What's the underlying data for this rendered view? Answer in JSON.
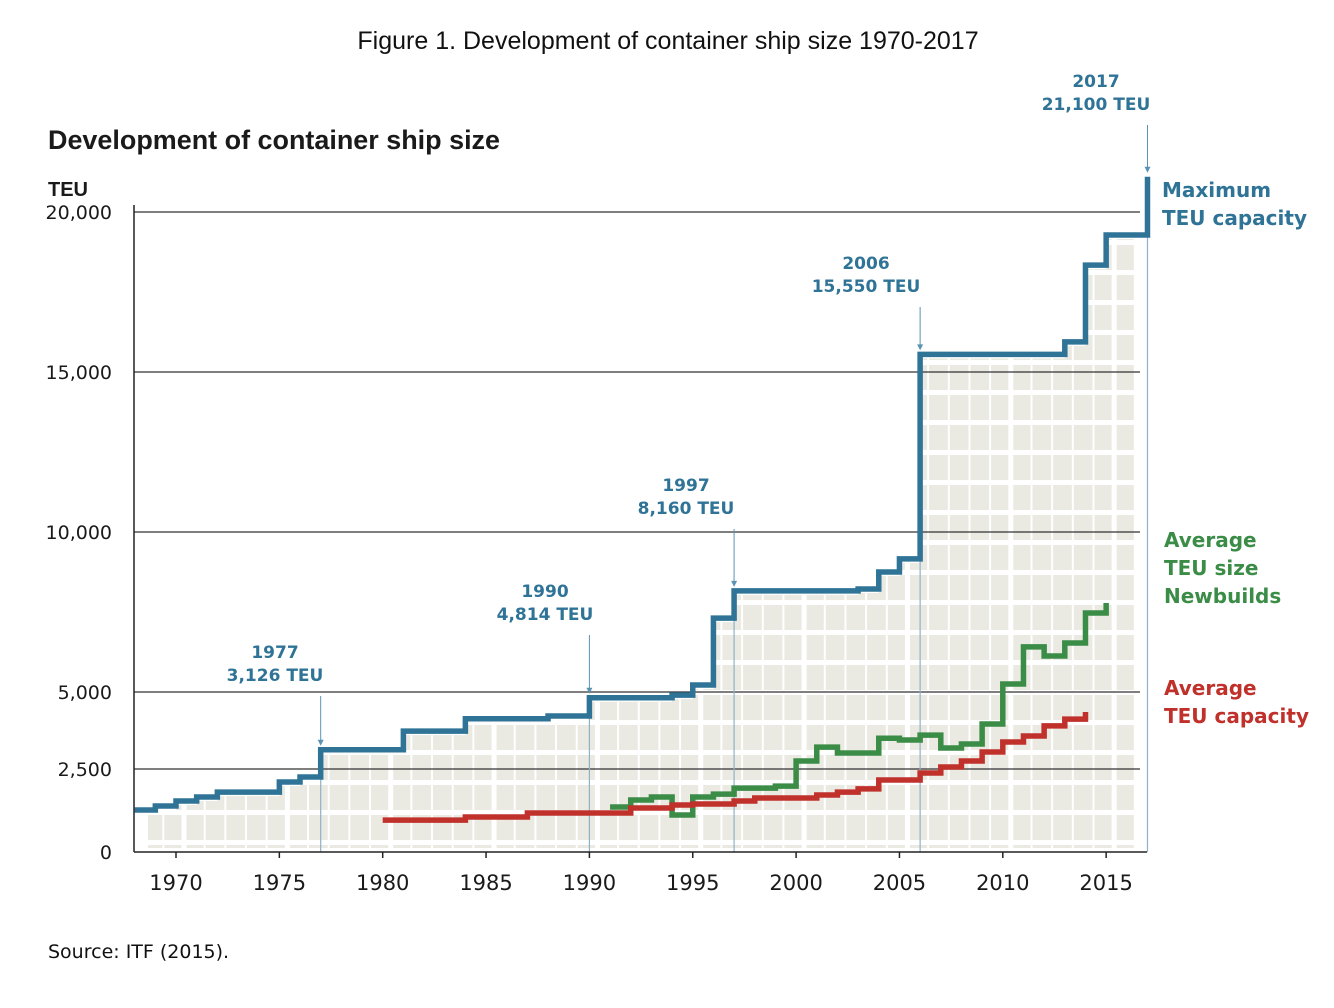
{
  "figure_caption": "Figure 1. Development of container ship size 1970-2017",
  "source": "Source: ITF (2015).",
  "chart_data": {
    "type": "line",
    "subtype": "step",
    "title": "Development of container ship size",
    "ylabel": "TEU",
    "xlabel": "",
    "xlim": [
      1968,
      2017
    ],
    "ylim": [
      0,
      21100
    ],
    "y_scale": "piecewise (0–5,000 expanded)",
    "yticks": [
      0,
      2500,
      5000,
      10000,
      15000,
      20000
    ],
    "ytick_labels": [
      "0",
      "2,500",
      "5,000",
      "10,000",
      "15,000",
      "20,000"
    ],
    "xticks": [
      1970,
      1975,
      1980,
      1985,
      1990,
      1995,
      2000,
      2005,
      2010,
      2015
    ],
    "xtick_labels": [
      "1970",
      "1975",
      "1980",
      "1985",
      "1990",
      "1995",
      "2000",
      "2005",
      "2010",
      "2015"
    ],
    "grid": true,
    "legend_placement": "right (inline labels)",
    "series": [
      {
        "name": "Maximum TEU capacity",
        "legend_lines": [
          "Maximum",
          "TEU capacity"
        ],
        "color": "#2f7397",
        "steps": [
          [
            1968,
            1265
          ],
          [
            1969,
            1385
          ],
          [
            1970,
            1535
          ],
          [
            1971,
            1655
          ],
          [
            1972,
            1805
          ],
          [
            1975,
            2110
          ],
          [
            1976,
            2260
          ],
          [
            1977,
            3126
          ],
          [
            1981,
            3730
          ],
          [
            1984,
            4130
          ],
          [
            1988,
            4220
          ],
          [
            1990,
            4814
          ],
          [
            1994,
            4900
          ],
          [
            1995,
            5220
          ],
          [
            1996,
            7310
          ],
          [
            1997,
            8160
          ],
          [
            2003,
            8220
          ],
          [
            2004,
            8750
          ],
          [
            2005,
            9160
          ],
          [
            2006,
            15550
          ],
          [
            2013,
            15940
          ],
          [
            2014,
            18340
          ],
          [
            2015,
            19280
          ],
          [
            2017,
            21100
          ]
        ],
        "end_year": 2017
      },
      {
        "name": "Average TEU size Newbuilds",
        "legend_lines": [
          "Average",
          "TEU size",
          "Newbuilds"
        ],
        "color": "#3a8c46",
        "steps": [
          [
            1991,
            1355
          ],
          [
            1992,
            1565
          ],
          [
            1993,
            1655
          ],
          [
            1994,
            1115
          ],
          [
            1995,
            1655
          ],
          [
            1996,
            1745
          ],
          [
            1997,
            1925
          ],
          [
            1999,
            1985
          ],
          [
            2000,
            2760
          ],
          [
            2001,
            3210
          ],
          [
            2002,
            3020
          ],
          [
            2004,
            3500
          ],
          [
            2005,
            3440
          ],
          [
            2006,
            3600
          ],
          [
            2007,
            3180
          ],
          [
            2008,
            3310
          ],
          [
            2009,
            3960
          ],
          [
            2010,
            5250
          ],
          [
            2011,
            6410
          ],
          [
            2012,
            6125
          ],
          [
            2013,
            6530
          ],
          [
            2014,
            7470
          ],
          [
            2015,
            7780
          ]
        ],
        "end_year": 2015
      },
      {
        "name": "Average TEU capacity",
        "legend_lines": [
          "Average",
          "TEU capacity"
        ],
        "color": "#c0312b",
        "steps": [
          [
            1980,
            960
          ],
          [
            1984,
            1055
          ],
          [
            1987,
            1175
          ],
          [
            1992,
            1325
          ],
          [
            1994,
            1415
          ],
          [
            1995,
            1445
          ],
          [
            1997,
            1535
          ],
          [
            1998,
            1625
          ],
          [
            2001,
            1715
          ],
          [
            2002,
            1805
          ],
          [
            2003,
            1900
          ],
          [
            2004,
            2170
          ],
          [
            2006,
            2380
          ],
          [
            2007,
            2565
          ],
          [
            2008,
            2760
          ],
          [
            2009,
            3050
          ],
          [
            2010,
            3375
          ],
          [
            2011,
            3570
          ],
          [
            2012,
            3900
          ],
          [
            2013,
            4120
          ],
          [
            2014,
            4350
          ]
        ],
        "end_year": 2014
      }
    ],
    "annotations": [
      {
        "year": "1977",
        "label": "3,126 TEU",
        "x": 1977,
        "value": 3126
      },
      {
        "year": "1990",
        "label": "4,814 TEU",
        "x": 1990,
        "value": 4814
      },
      {
        "year": "1997",
        "label": "8,160 TEU",
        "x": 1997,
        "value": 8160
      },
      {
        "year": "2006",
        "label": "15,550 TEU",
        "x": 2006,
        "value": 15550
      },
      {
        "year": "2017",
        "label": "21,100 TEU",
        "x": 2017,
        "value": 21100
      }
    ]
  }
}
